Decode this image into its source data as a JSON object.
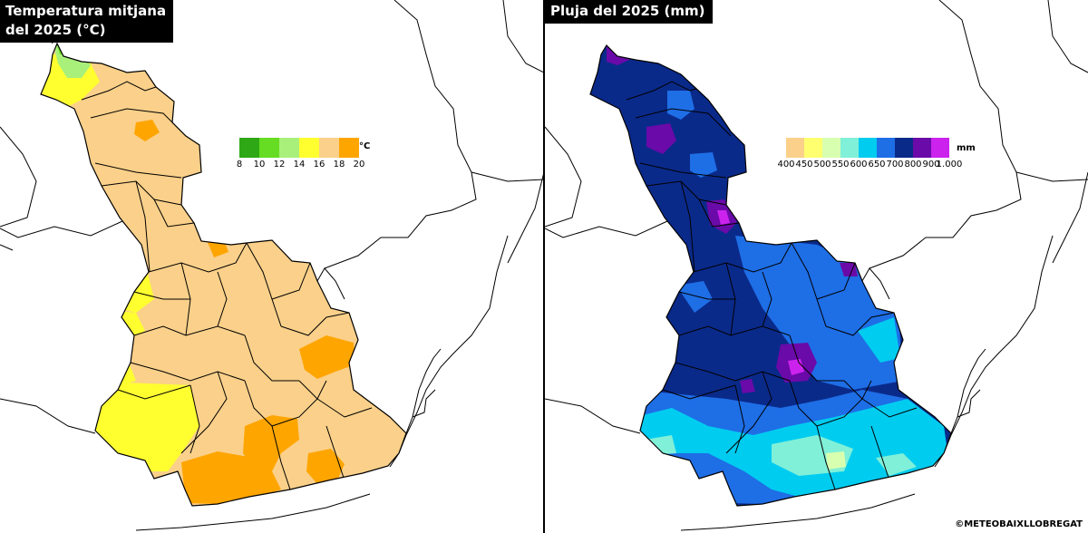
{
  "left_panel": {
    "title": "Temperatura mitjana\ndel 2025 (°C)",
    "legend": {
      "unit": "°C",
      "ticks": [
        "8",
        "10",
        "12",
        "14",
        "16",
        "18",
        "20"
      ],
      "colors": [
        "#2ea815",
        "#66dd22",
        "#a8f07a",
        "#ffff30",
        "#fad08a",
        "#ffa500"
      ]
    }
  },
  "right_panel": {
    "title": "Pluja del 2025 (mm)",
    "legend": {
      "unit": "mm",
      "ticks": [
        "400",
        "450",
        "500",
        "550",
        "600",
        "650",
        "700",
        "800",
        "900",
        "1.000"
      ],
      "colors": [
        "#fad08a",
        "#ffff70",
        "#d8ffb0",
        "#80f0d8",
        "#00ccf0",
        "#1e6ee6",
        "#0a2a8a",
        "#6a0aa8",
        "#cc22ee"
      ]
    }
  },
  "credit": "©METEOBAIXLLOBREGAT"
}
